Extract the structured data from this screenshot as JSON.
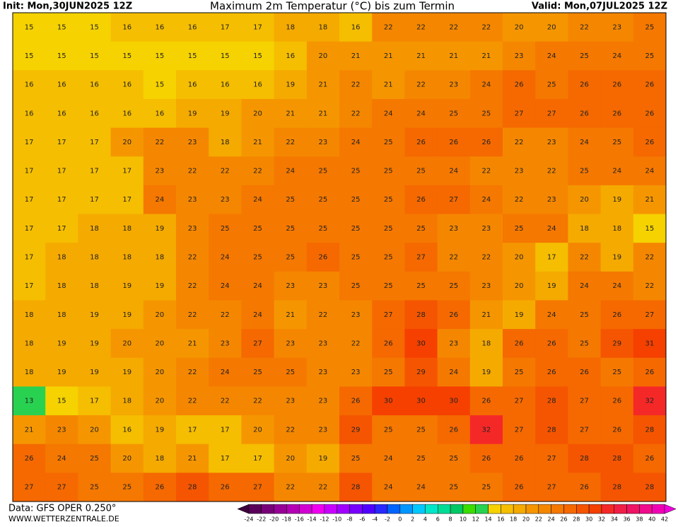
{
  "header": {
    "init": "Init: Mon,30JUN2025 12Z",
    "title": "Maximum 2m Temperatur (°C) bis zum Termin",
    "valid": "Valid: Mon,07JUL2025 12Z"
  },
  "map": {
    "rows": [
      [
        15,
        15,
        15,
        16,
        16,
        16,
        17,
        17,
        18,
        18,
        16,
        22,
        22,
        22,
        22,
        20,
        20,
        22,
        23,
        25
      ],
      [
        15,
        15,
        15,
        15,
        15,
        15,
        15,
        15,
        16,
        20,
        21,
        21,
        21,
        21,
        21,
        23,
        24,
        25,
        24,
        25
      ],
      [
        16,
        16,
        16,
        16,
        15,
        16,
        16,
        16,
        19,
        21,
        22,
        21,
        22,
        23,
        24,
        26,
        25,
        26,
        26,
        26
      ],
      [
        16,
        16,
        16,
        16,
        16,
        19,
        19,
        20,
        21,
        21,
        22,
        24,
        24,
        25,
        25,
        27,
        27,
        26,
        26,
        26
      ],
      [
        17,
        17,
        17,
        20,
        22,
        23,
        18,
        21,
        22,
        23,
        24,
        25,
        26,
        26,
        26,
        22,
        23,
        24,
        25,
        26
      ],
      [
        17,
        17,
        17,
        17,
        23,
        22,
        22,
        22,
        24,
        25,
        25,
        25,
        25,
        24,
        22,
        23,
        22,
        25,
        24,
        24
      ],
      [
        17,
        17,
        17,
        17,
        24,
        23,
        23,
        24,
        25,
        25,
        25,
        25,
        26,
        27,
        24,
        22,
        23,
        20,
        19,
        21
      ],
      [
        17,
        17,
        18,
        18,
        19,
        23,
        25,
        25,
        25,
        25,
        25,
        25,
        25,
        23,
        23,
        25,
        24,
        18,
        18,
        15
      ],
      [
        17,
        18,
        18,
        18,
        18,
        22,
        24,
        25,
        25,
        26,
        25,
        25,
        27,
        22,
        22,
        20,
        17,
        22,
        19,
        22
      ],
      [
        17,
        18,
        18,
        19,
        19,
        22,
        24,
        24,
        23,
        23,
        25,
        25,
        25,
        25,
        23,
        20,
        19,
        24,
        24,
        22
      ],
      [
        18,
        18,
        19,
        19,
        20,
        22,
        22,
        24,
        21,
        22,
        23,
        27,
        28,
        26,
        21,
        19,
        24,
        25,
        26,
        27
      ],
      [
        18,
        19,
        19,
        20,
        20,
        21,
        23,
        27,
        23,
        23,
        22,
        26,
        30,
        23,
        18,
        26,
        26,
        25,
        29,
        31
      ],
      [
        18,
        19,
        19,
        19,
        20,
        22,
        24,
        25,
        25,
        23,
        23,
        25,
        29,
        24,
        19,
        25,
        26,
        26,
        25,
        26
      ],
      [
        13,
        15,
        17,
        18,
        20,
        22,
        22,
        22,
        23,
        23,
        26,
        30,
        30,
        30,
        26,
        27,
        28,
        27,
        26,
        32
      ],
      [
        21,
        23,
        20,
        16,
        19,
        17,
        17,
        20,
        22,
        23,
        29,
        25,
        25,
        26,
        32,
        27,
        28,
        27,
        26,
        28
      ],
      [
        26,
        24,
        25,
        20,
        18,
        21,
        17,
        17,
        20,
        19,
        25,
        24,
        25,
        25,
        26,
        26,
        27,
        28,
        28,
        26
      ],
      [
        27,
        27,
        25,
        25,
        26,
        28,
        26,
        27,
        22,
        22,
        28,
        24,
        24,
        25,
        25,
        26,
        27,
        26,
        28,
        28
      ]
    ]
  },
  "colorbar": {
    "ticks": [
      -24,
      -22,
      -20,
      -18,
      -16,
      -14,
      -12,
      -10,
      -8,
      -6,
      -4,
      -2,
      0,
      2,
      4,
      6,
      8,
      10,
      12,
      14,
      16,
      18,
      20,
      22,
      24,
      26,
      28,
      30,
      32,
      34,
      36,
      38,
      40,
      42
    ],
    "colors": [
      "#3c003c",
      "#5a005a",
      "#780078",
      "#960096",
      "#b400b4",
      "#d200d2",
      "#f000f0",
      "#c800ff",
      "#a000ff",
      "#7800ff",
      "#5000ff",
      "#2828ff",
      "#0064ff",
      "#0096ff",
      "#00c8ff",
      "#00e6c8",
      "#00dc96",
      "#00c864",
      "#3cdc00",
      "#28d250",
      "#f5d200",
      "#f5be00",
      "#f5aa00",
      "#f59600",
      "#f58700",
      "#f57800",
      "#f56900",
      "#f55500",
      "#f54000",
      "#f52828",
      "#f01e46",
      "#f01464",
      "#f00a8c",
      "#f000b4",
      "#f000dc"
    ]
  },
  "footer": {
    "data": "Data: GFS OPER 0.250°",
    "site": "WWW.WETTERZENTRALE.DE"
  }
}
